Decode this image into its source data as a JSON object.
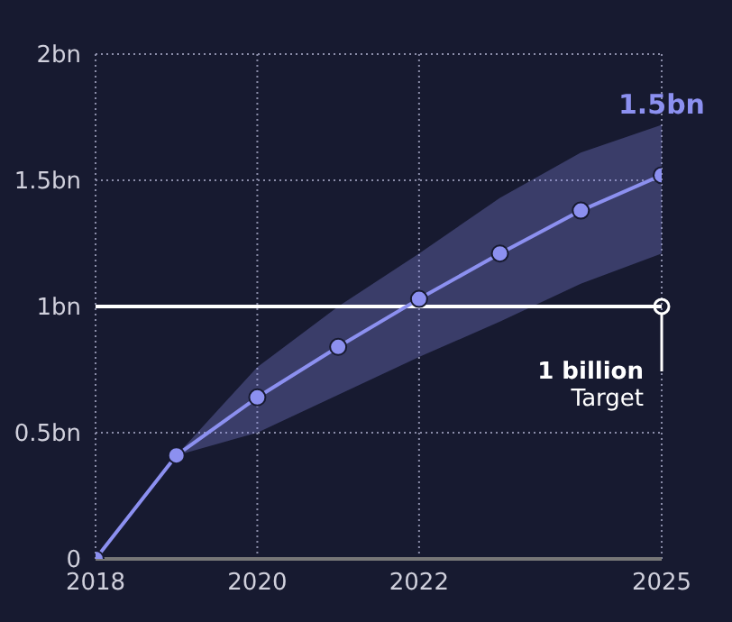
{
  "chart_data": {
    "type": "line",
    "x": [
      2018,
      2019,
      2020,
      2021,
      2022,
      2023,
      2024,
      2025
    ],
    "series": [
      {
        "color": "#8c90f0",
        "values": [
          0,
          0.41,
          0.64,
          0.84,
          1.03,
          1.21,
          1.38,
          1.52
        ],
        "lower": [
          0,
          0.41,
          0.5,
          0.65,
          0.8,
          0.94,
          1.09,
          1.21
        ],
        "upper": [
          0,
          0.41,
          0.76,
          1.0,
          1.21,
          1.43,
          1.61,
          1.72
        ]
      }
    ],
    "xlim": [
      2018,
      2025
    ],
    "xticks": [
      2018,
      2020,
      2022,
      2025
    ],
    "ylim": [
      0,
      2
    ],
    "yticks": [
      {
        "value": 0,
        "label": "0"
      },
      {
        "value": 0.5,
        "label": "0.5bn"
      },
      {
        "value": 1,
        "label": "1bn"
      },
      {
        "value": 1.5,
        "label": "1.5bn"
      },
      {
        "value": 2,
        "label": "2bn"
      }
    ],
    "ref_lines": [
      {
        "axis": "y",
        "value": 1,
        "label": "1 billion\nTarget",
        "color": "#ffffff"
      }
    ],
    "annotations": [
      {
        "text": "1.5bn",
        "x": 2025,
        "y": 1.52
      }
    ],
    "grid": true,
    "marker": "circle",
    "line_style": "solid"
  }
}
